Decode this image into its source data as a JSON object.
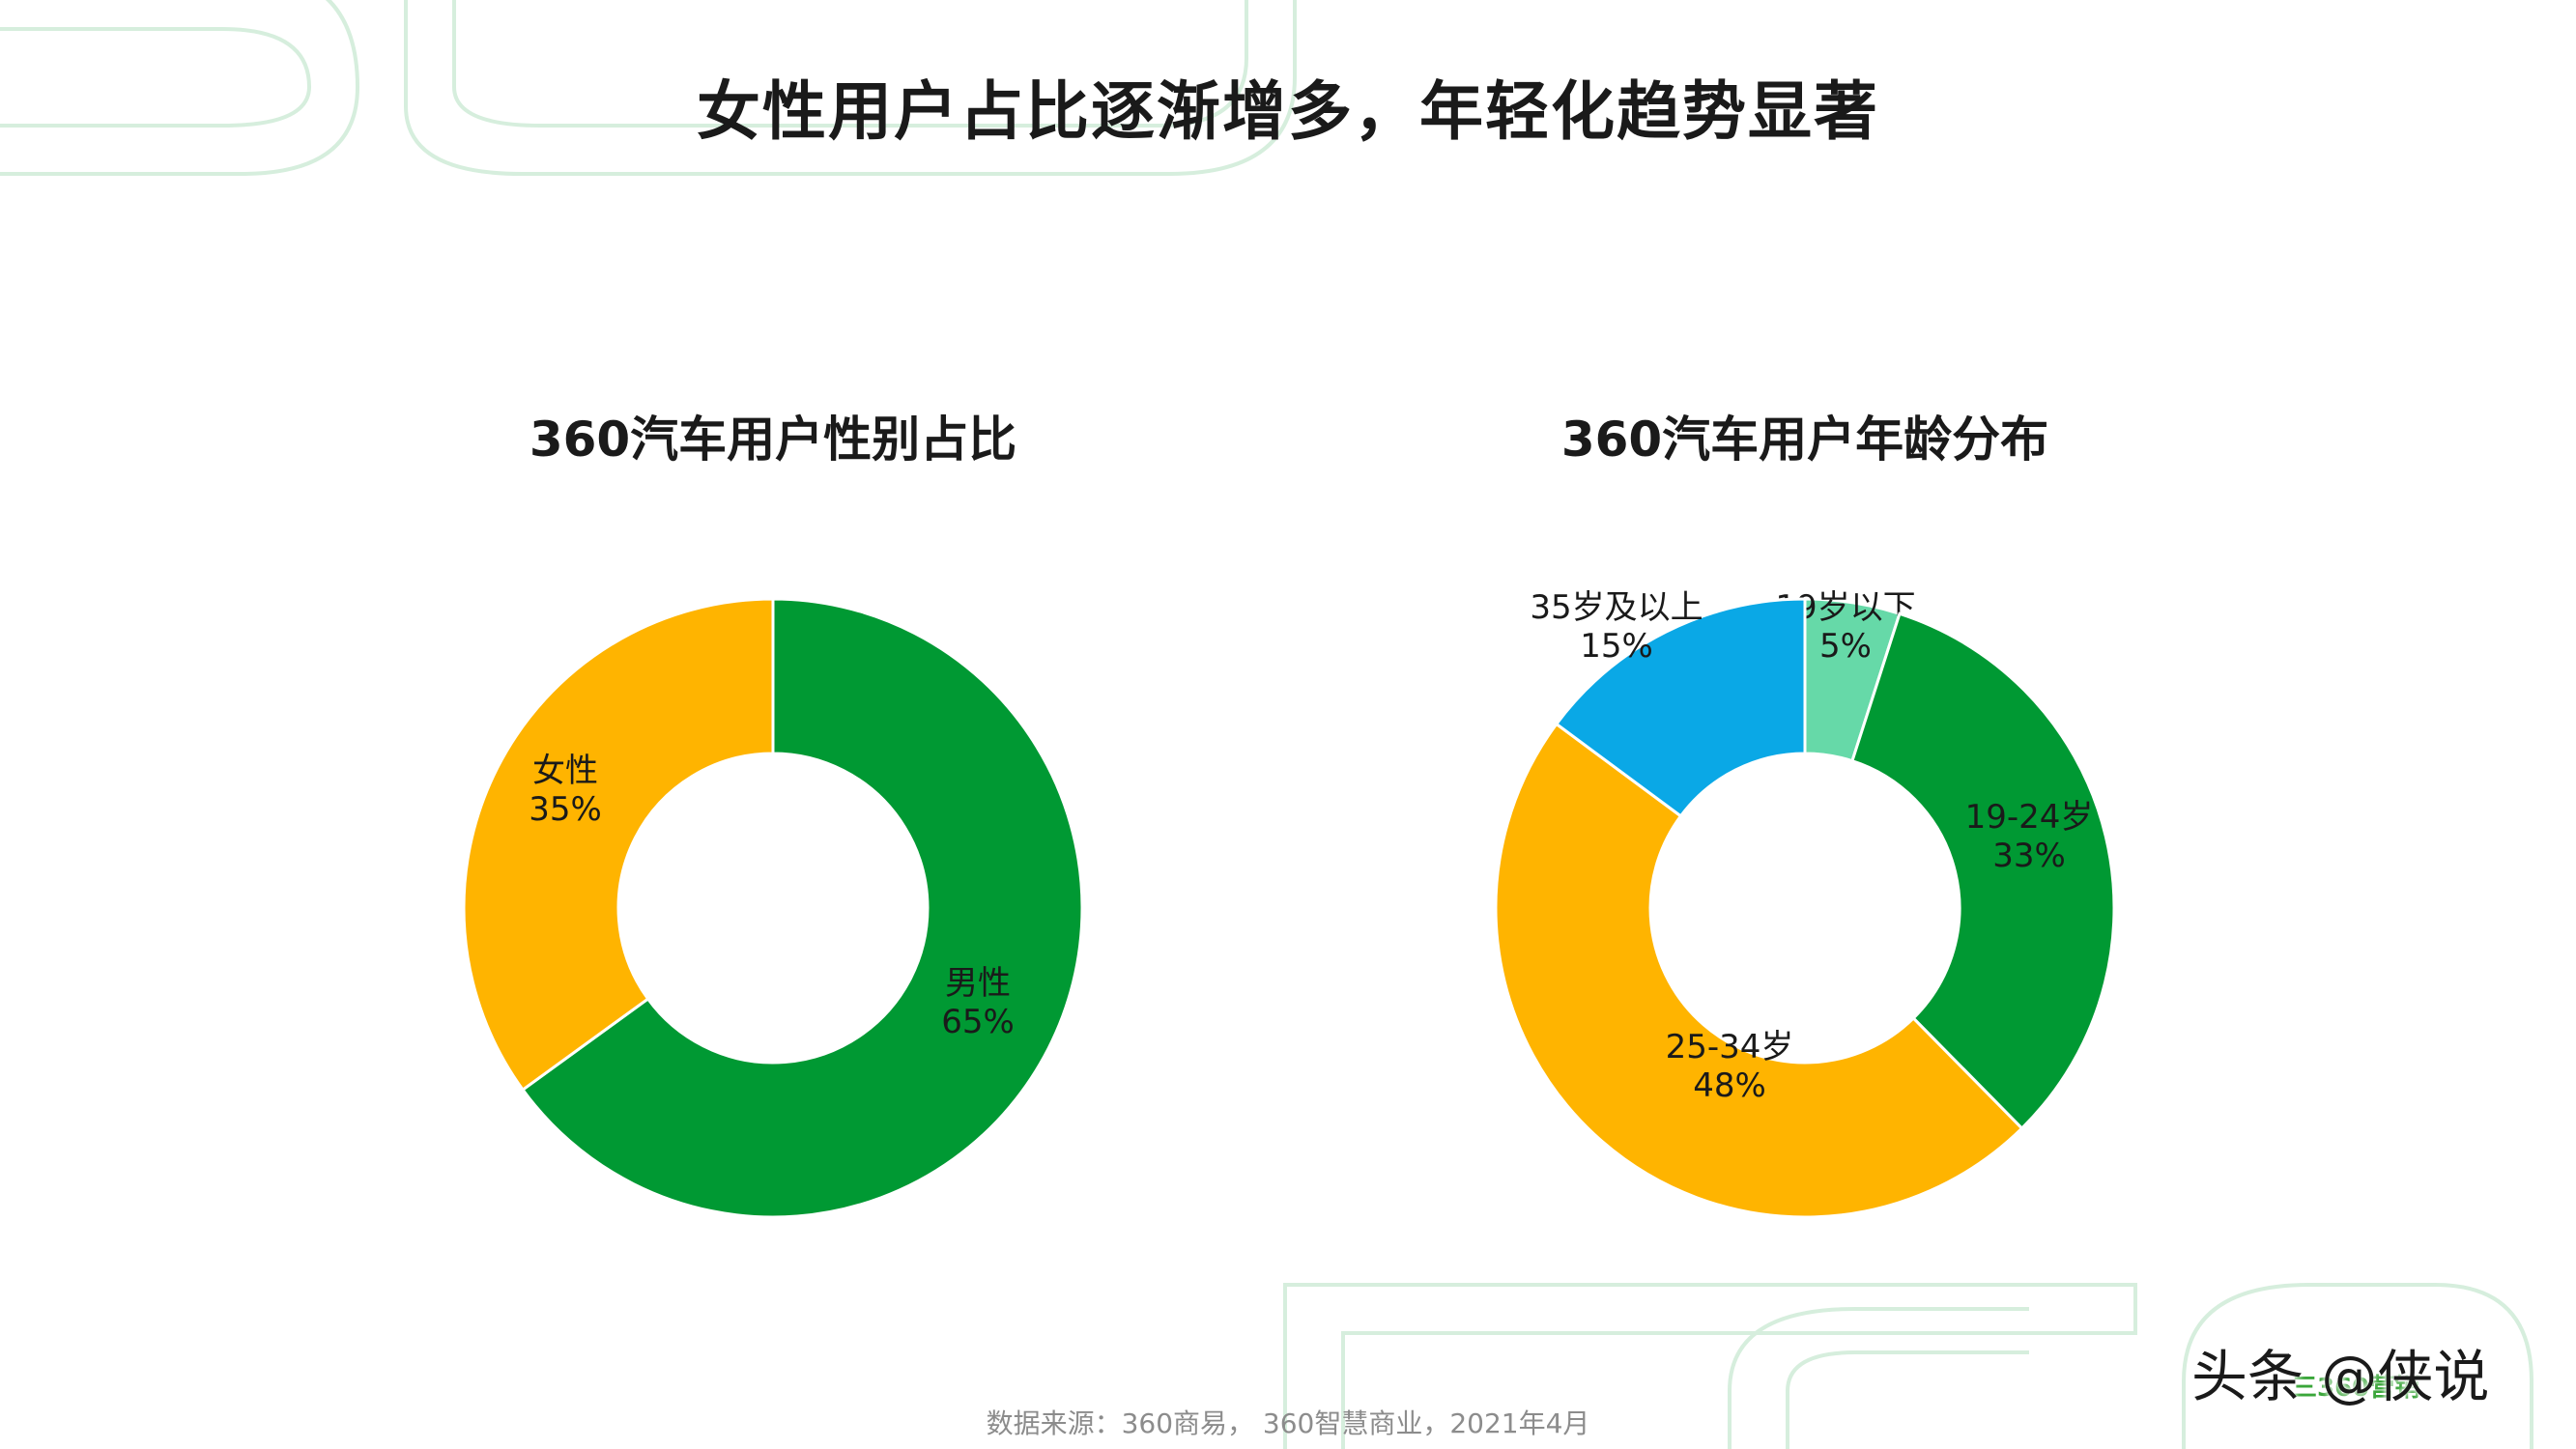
{
  "title": "女性用户占比逐渐增多，年轻化趋势显著",
  "source": "数据来源：360商易， 360智慧商业，2021年4月",
  "watermark": "头条 @侠说",
  "watermark_logo": "三360营销",
  "colors": {
    "green": "#009933",
    "yellow": "#ffb400",
    "blue": "#0aa8e6",
    "mint": "#66d9a8",
    "deco_line": "#d6eedd"
  },
  "chart_data": [
    {
      "type": "pie",
      "title": "360汽车用户性别占比",
      "donut": true,
      "slices": [
        {
          "name": "男性",
          "value": 65,
          "label_value": "65%",
          "color": "#009933"
        },
        {
          "name": "女性",
          "value": 35,
          "label_value": "35%",
          "color": "#ffb400"
        }
      ]
    },
    {
      "type": "pie",
      "title": "360汽车用户年龄分布",
      "donut": true,
      "slices": [
        {
          "name": "19岁以下",
          "value": 5,
          "label_value": "5%",
          "color": "#66d9a8"
        },
        {
          "name": "19-24岁",
          "value": 33,
          "label_value": "33%",
          "color": "#009933"
        },
        {
          "name": "25-34岁",
          "value": 48,
          "label_value": "48%",
          "color": "#ffb400"
        },
        {
          "name": "35岁及以上",
          "value": 15,
          "label_value": "15%",
          "color": "#0aa8e6"
        }
      ]
    }
  ]
}
